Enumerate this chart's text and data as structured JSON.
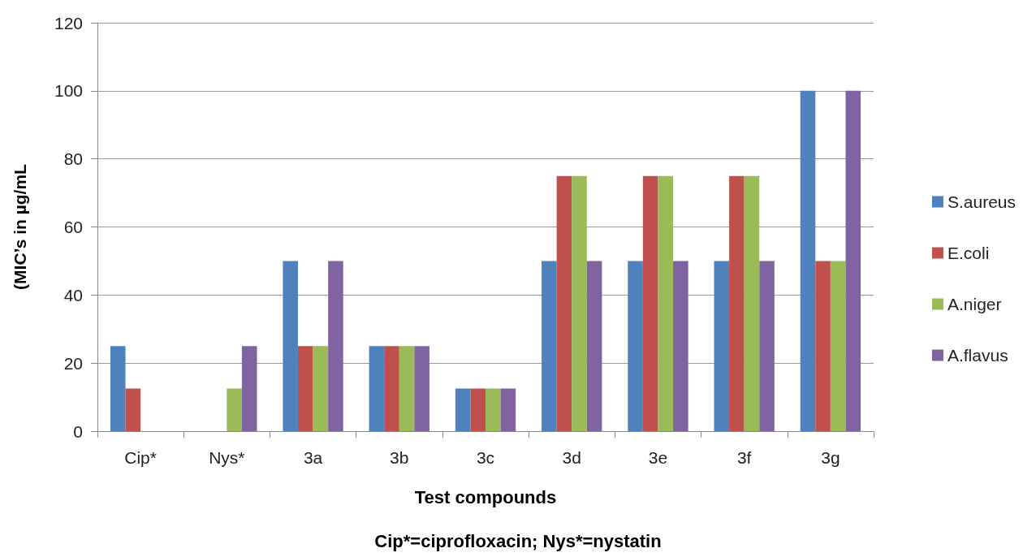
{
  "chart_data": {
    "type": "bar",
    "xlabel": "Test compounds",
    "ylabel": "(MIC’s in µg/mL",
    "annotations": [
      "Cip*=ciprofloxacin; Nys*=nystatin"
    ],
    "categories": [
      "Cip*",
      "Nys*",
      "3a",
      "3b",
      "3c",
      "3d",
      "3e",
      "3f",
      "3g"
    ],
    "series": [
      {
        "name": "S.aureus",
        "color": "#4f81bd",
        "values": [
          25,
          0,
          50,
          25,
          12.5,
          50,
          50,
          50,
          100
        ]
      },
      {
        "name": "E.coli",
        "color": "#c0504d",
        "values": [
          12.5,
          0,
          25,
          25,
          12.5,
          75,
          75,
          75,
          50
        ]
      },
      {
        "name": "A.niger",
        "color": "#9bbb59",
        "values": [
          0,
          12.5,
          25,
          25,
          12.5,
          75,
          75,
          75,
          50
        ]
      },
      {
        "name": "A.flavus",
        "color": "#8064a2",
        "values": [
          0,
          25,
          50,
          25,
          12.5,
          50,
          50,
          50,
          100
        ]
      }
    ],
    "ylim": [
      0,
      120
    ],
    "yticks": [
      0,
      20,
      40,
      60,
      80,
      100,
      120
    ],
    "grid": "y",
    "legend": "right"
  }
}
